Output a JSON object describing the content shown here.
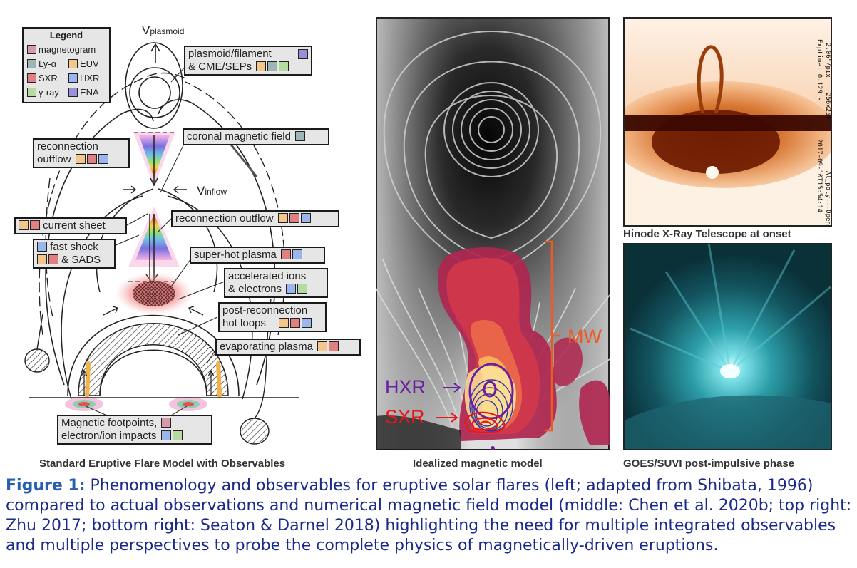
{
  "legend": {
    "title": "Legend",
    "items": [
      {
        "label": "magnetogram",
        "color": "#d79aad"
      },
      {
        "label": "Ly-α",
        "color": "#9db5b5"
      },
      {
        "label": "EUV",
        "color": "#f3c68c"
      },
      {
        "label": "SXR",
        "color": "#e08080"
      },
      {
        "label": "HXR",
        "color": "#9ab6ec"
      },
      {
        "label": "γ-ray",
        "color": "#b6dba0"
      },
      {
        "label": "ENA",
        "color": "#9a8fd9"
      }
    ]
  },
  "diagram": {
    "v_plasmoid": "V",
    "v_plasmoid_sub": "plasmoid",
    "v_inflow": "V",
    "v_inflow_sub": "inflow",
    "labels": {
      "plasmoid_line1": "plasmoid/filament",
      "plasmoid_line2": "& CME/SEPs",
      "coronal_field": "coronal magnetic field",
      "recon_outflow_left_1": "reconnection",
      "recon_outflow_left_2": "outflow",
      "current_sheet": "current sheet",
      "recon_outflow_right": "reconnection outflow",
      "fast_shock_1": "fast shock",
      "fast_shock_2": "& SADS",
      "super_hot": "super-hot plasma",
      "accel_1": "accelerated ions",
      "accel_2": "& electrons",
      "post_recon_1": "post-reconnection",
      "post_recon_2": "hot loops",
      "evaporating": "evaporating plasma",
      "footpoints_1": "Magnetic footpoints,",
      "footpoints_2": "electron/ion impacts"
    },
    "caption": "Standard Eruptive Flare Model with Observables"
  },
  "middle": {
    "hxr": "HXR",
    "sxr": "SXR",
    "mw": "MW",
    "caption": "Idealized magnetic model"
  },
  "top_right": {
    "caption": "Hinode X-Ray Telescope at onset",
    "meta1": "2.06\"/pix",
    "meta2": "Exptime: 0.129 s",
    "meta3": "256x256",
    "meta4": "Al_poly---Open",
    "meta5": "2017-09-10T15:54:14"
  },
  "bottom_right": {
    "caption": "GOES/SUVI post-impulsive phase"
  },
  "figure_caption": {
    "label": "Figure 1:",
    "text": "Phenomenology and observables for eruptive solar flares (left; adapted from Shibata, 1996) compared to actual observations and numerical magnetic field model (middle: Chen et al. 2020b; top right: Zhu 2017; bottom right: Seaton & Darnel 2018) highlighting the need for multiple integrated observables and multiple perspectives to probe the complete physics of magnetically-driven eruptions."
  }
}
